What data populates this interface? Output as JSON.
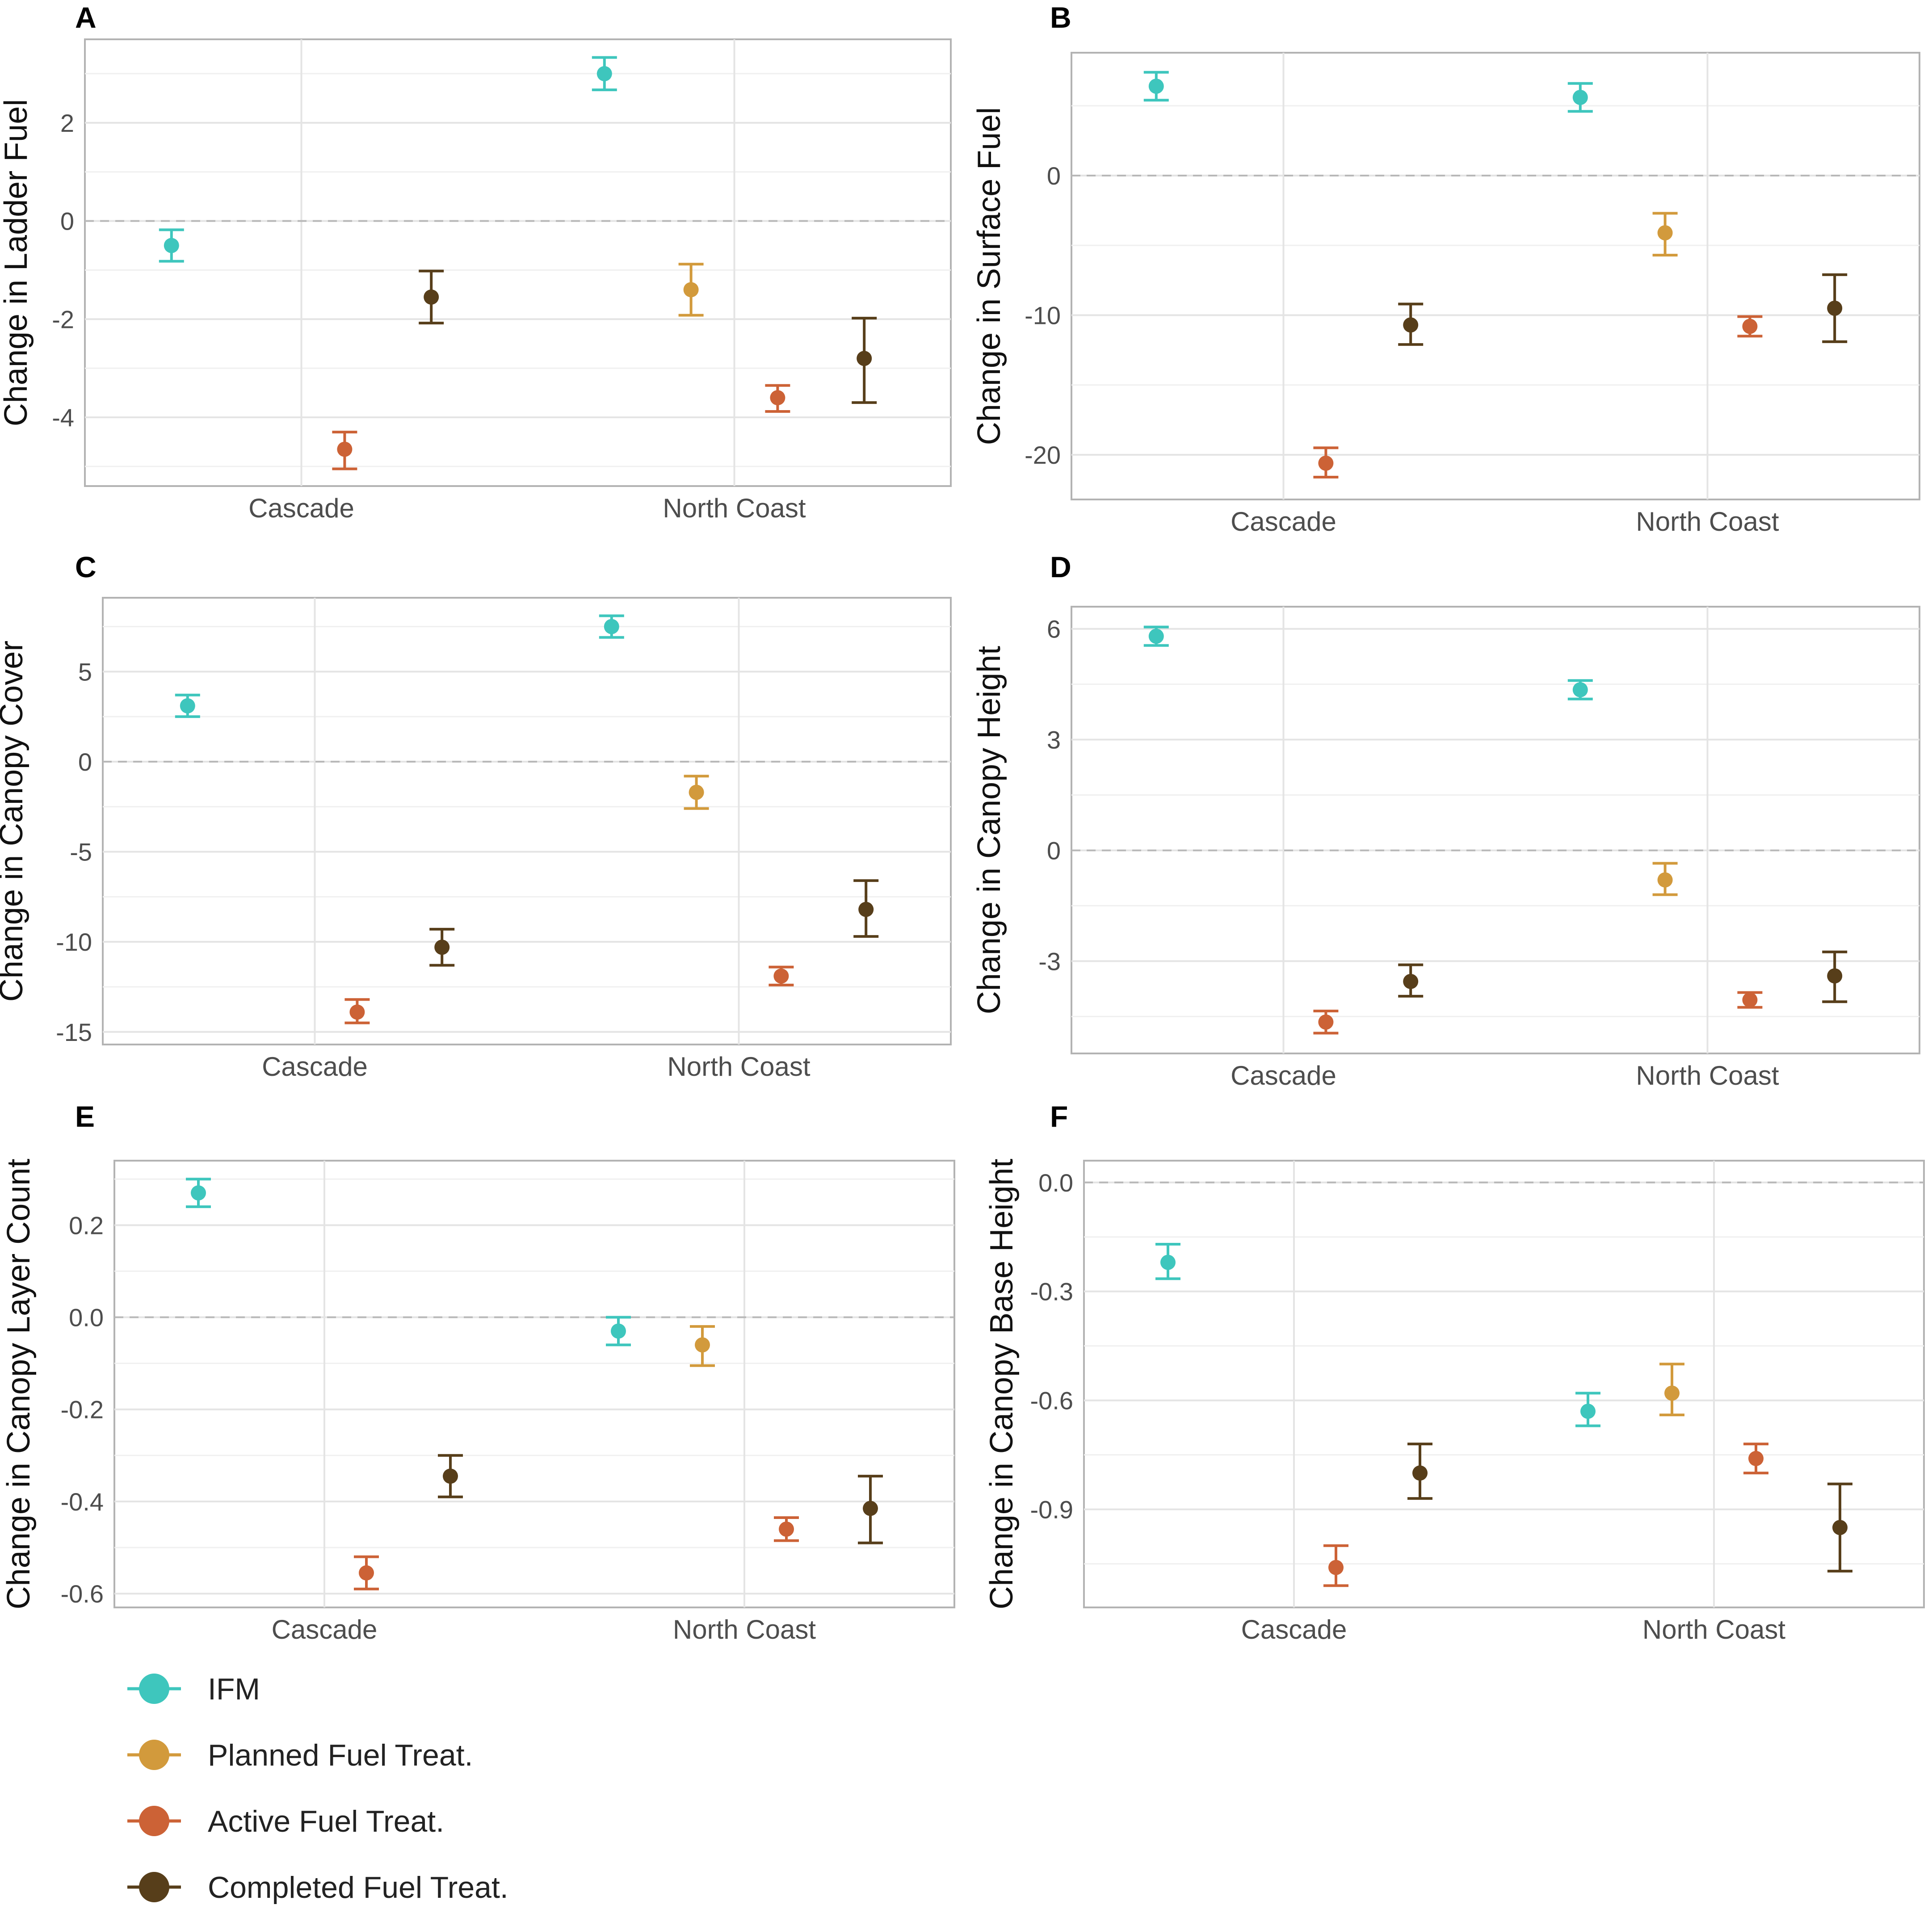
{
  "chart_data": [
    {
      "panel": "A",
      "type": "scatter",
      "ylabel": "Change in Ladder Fuel",
      "categories": [
        "Cascade",
        "North Coast"
      ],
      "ylim": [
        -5.4,
        3.7
      ],
      "yticks": [
        {
          "v": -4,
          "label": "-4"
        },
        {
          "v": -2,
          "label": "-2"
        },
        {
          "v": 0,
          "label": "0"
        },
        {
          "v": 2,
          "label": "2"
        }
      ],
      "series": [
        {
          "name": "IFM",
          "values": [
            [
              -0.5,
              -0.82,
              -0.18
            ],
            [
              3.0,
              2.67,
              3.33
            ]
          ]
        },
        {
          "name": "Planned Fuel Treat.",
          "values": [
            null,
            [
              -1.4,
              -1.92,
              -0.88
            ]
          ]
        },
        {
          "name": "Active Fuel Treat.",
          "values": [
            [
              -4.65,
              -5.05,
              -4.3
            ],
            [
              -3.6,
              -3.88,
              -3.35
            ]
          ]
        },
        {
          "name": "Completed Fuel Treat.",
          "values": [
            [
              -1.55,
              -2.08,
              -1.02
            ],
            [
              -2.8,
              -3.7,
              -1.98
            ]
          ]
        }
      ]
    },
    {
      "panel": "B",
      "type": "scatter",
      "ylabel": "Change in Surface Fuel",
      "categories": [
        "Cascade",
        "North Coast"
      ],
      "ylim": [
        -23.2,
        8.8
      ],
      "yticks": [
        {
          "v": -20,
          "label": "-20"
        },
        {
          "v": -10,
          "label": "-10"
        },
        {
          "v": 0,
          "label": "0"
        }
      ],
      "series": [
        {
          "name": "IFM",
          "values": [
            [
              6.4,
              5.4,
              7.4
            ],
            [
              5.6,
              4.6,
              6.6
            ]
          ]
        },
        {
          "name": "Planned Fuel Treat.",
          "values": [
            null,
            [
              -4.1,
              -5.7,
              -2.7
            ]
          ]
        },
        {
          "name": "Active Fuel Treat.",
          "values": [
            [
              -20.6,
              -21.6,
              -19.5
            ],
            [
              -10.8,
              -11.5,
              -10.1
            ]
          ]
        },
        {
          "name": "Completed Fuel Treat.",
          "values": [
            [
              -10.7,
              -12.1,
              -9.2
            ],
            [
              -9.5,
              -11.9,
              -7.1
            ]
          ]
        }
      ]
    },
    {
      "panel": "C",
      "type": "scatter",
      "ylabel": "Change in Canopy Cover",
      "categories": [
        "Cascade",
        "North Coast"
      ],
      "ylim": [
        -15.7,
        9.1
      ],
      "yticks": [
        {
          "v": -15,
          "label": "-15"
        },
        {
          "v": -10,
          "label": "-10"
        },
        {
          "v": -5,
          "label": "-5"
        },
        {
          "v": 0,
          "label": "0"
        },
        {
          "v": 5,
          "label": "5"
        }
      ],
      "series": [
        {
          "name": "IFM",
          "values": [
            [
              3.1,
              2.5,
              3.7
            ],
            [
              7.5,
              6.9,
              8.1
            ]
          ]
        },
        {
          "name": "Planned Fuel Treat.",
          "values": [
            null,
            [
              -1.7,
              -2.6,
              -0.8
            ]
          ]
        },
        {
          "name": "Active Fuel Treat.",
          "values": [
            [
              -13.9,
              -14.5,
              -13.2
            ],
            [
              -11.9,
              -12.4,
              -11.4
            ]
          ]
        },
        {
          "name": "Completed Fuel Treat.",
          "values": [
            [
              -10.3,
              -11.3,
              -9.3
            ],
            [
              -8.2,
              -9.7,
              -6.6
            ]
          ]
        }
      ]
    },
    {
      "panel": "D",
      "type": "scatter",
      "ylabel": "Change in Canopy Height",
      "categories": [
        "Cascade",
        "North Coast"
      ],
      "ylim": [
        -5.5,
        6.6
      ],
      "yticks": [
        {
          "v": -3,
          "label": "-3"
        },
        {
          "v": 0,
          "label": "0"
        },
        {
          "v": 3,
          "label": "3"
        },
        {
          "v": 6,
          "label": "6"
        }
      ],
      "series": [
        {
          "name": "IFM",
          "values": [
            [
              5.8,
              5.55,
              6.05
            ],
            [
              4.35,
              4.1,
              4.6
            ]
          ]
        },
        {
          "name": "Planned Fuel Treat.",
          "values": [
            null,
            [
              -0.8,
              -1.2,
              -0.35
            ]
          ]
        },
        {
          "name": "Active Fuel Treat.",
          "values": [
            [
              -4.65,
              -4.95,
              -4.35
            ],
            [
              -4.05,
              -4.25,
              -3.85
            ]
          ]
        },
        {
          "name": "Completed Fuel Treat.",
          "values": [
            [
              -3.55,
              -3.95,
              -3.1
            ],
            [
              -3.4,
              -4.1,
              -2.75
            ]
          ]
        }
      ]
    },
    {
      "panel": "E",
      "type": "scatter",
      "ylabel": "Change in Canopy Layer Count",
      "categories": [
        "Cascade",
        "North Coast"
      ],
      "ylim": [
        -0.63,
        0.34
      ],
      "yticks": [
        {
          "v": -0.6,
          "label": "-0.6"
        },
        {
          "v": -0.4,
          "label": "-0.4"
        },
        {
          "v": -0.2,
          "label": "-0.2"
        },
        {
          "v": 0,
          "label": "0.0"
        },
        {
          "v": 0.2,
          "label": "0.2"
        }
      ],
      "series": [
        {
          "name": "IFM",
          "values": [
            [
              0.27,
              0.24,
              0.3
            ],
            [
              -0.03,
              -0.06,
              0.0
            ]
          ]
        },
        {
          "name": "Planned Fuel Treat.",
          "values": [
            null,
            [
              -0.06,
              -0.105,
              -0.02
            ]
          ]
        },
        {
          "name": "Active Fuel Treat.",
          "values": [
            [
              -0.555,
              -0.59,
              -0.52
            ],
            [
              -0.46,
              -0.485,
              -0.435
            ]
          ]
        },
        {
          "name": "Completed Fuel Treat.",
          "values": [
            [
              -0.345,
              -0.39,
              -0.3
            ],
            [
              -0.415,
              -0.49,
              -0.345
            ]
          ]
        }
      ]
    },
    {
      "panel": "F",
      "type": "scatter",
      "ylabel": "Change in Canopy Base Height",
      "categories": [
        "Cascade",
        "North Coast"
      ],
      "ylim": [
        -1.17,
        0.06
      ],
      "yticks": [
        {
          "v": -0.9,
          "label": "-0.9"
        },
        {
          "v": -0.6,
          "label": "-0.6"
        },
        {
          "v": -0.3,
          "label": "-0.3"
        },
        {
          "v": 0,
          "label": "0.0"
        }
      ],
      "series": [
        {
          "name": "IFM",
          "values": [
            [
              -0.22,
              -0.265,
              -0.17
            ],
            [
              -0.63,
              -0.67,
              -0.58
            ]
          ]
        },
        {
          "name": "Planned Fuel Treat.",
          "values": [
            null,
            [
              -0.58,
              -0.64,
              -0.5
            ]
          ]
        },
        {
          "name": "Active Fuel Treat.",
          "values": [
            [
              -1.06,
              -1.11,
              -1.0
            ],
            [
              -0.76,
              -0.8,
              -0.72
            ]
          ]
        },
        {
          "name": "Completed Fuel Treat.",
          "values": [
            [
              -0.8,
              -0.87,
              -0.72
            ],
            [
              -0.95,
              -1.07,
              -0.83
            ]
          ]
        }
      ]
    }
  ],
  "legend": [
    {
      "label": "IFM",
      "color": "#3ec6bd"
    },
    {
      "label": "Planned Fuel Treat.",
      "color": "#d29a3c"
    },
    {
      "label": "Active Fuel Treat.",
      "color": "#cc6236"
    },
    {
      "label": "Completed Fuel Treat.",
      "color": "#573e1a"
    }
  ]
}
